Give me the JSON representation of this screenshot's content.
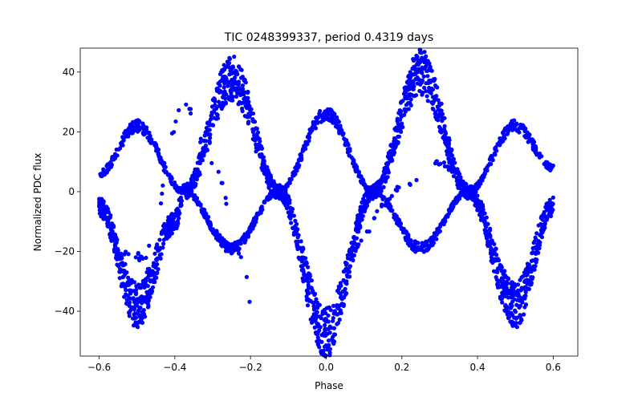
{
  "chart_data": {
    "type": "scatter",
    "title": "TIC 0248399337, period 0.4319 days",
    "xlabel": "Phase",
    "ylabel": "Normalized PDC flux",
    "xlim": [
      -0.65,
      0.665
    ],
    "ylim": [
      -55,
      48
    ],
    "x_ticks": [
      -0.6,
      -0.4,
      -0.2,
      0.0,
      0.2,
      0.4,
      0.6
    ],
    "x_tick_labels": [
      "−0.6",
      "−0.4",
      "−0.2",
      "0.0",
      "0.2",
      "0.4",
      "0.6"
    ],
    "y_ticks": [
      -40,
      -20,
      0,
      20,
      40
    ],
    "y_tick_labels": [
      "−40",
      "−20",
      "0",
      "20",
      "40"
    ],
    "grid": false,
    "marker_color": "#0000ff",
    "series": [
      {
        "description_components": [
          {
            "component": "primary",
            "x": [
              -0.6,
              -0.5,
              -0.4,
              -0.375,
              -0.25,
              -0.125,
              0.0,
              0.125,
              0.25,
              0.375,
              0.5,
              0.6
            ],
            "y": [
              -5,
              -38,
              -10,
              0,
              38,
              0,
              -47,
              0,
              40,
              0,
              -38,
              -5
            ]
          },
          {
            "component": "secondary",
            "x": [
              -0.6,
              -0.5,
              -0.375,
              -0.25,
              -0.125,
              0.0,
              0.125,
              0.25,
              0.375,
              0.5,
              0.6
            ],
            "y": [
              6,
              22,
              0,
              -19,
              0,
              26,
              0,
              -19,
              0,
              22,
              8
            ]
          },
          {
            "component": "outlier_arc",
            "x": [
              -0.54,
              -0.48,
              -0.44,
              -0.42,
              -0.38,
              -0.3,
              -0.22,
              -0.2
            ],
            "y": [
              -20,
              -22,
              -5,
              15,
              30,
              10,
              -22,
              -36
            ]
          },
          {
            "component": "outlier_arc",
            "x": [
              0.05,
              0.1,
              0.15,
              0.2,
              0.25,
              0.29,
              0.33,
              0.4,
              0.45
            ],
            "y": [
              -25,
              -15,
              -5,
              2,
              4,
              10,
              8,
              -3,
              -10
            ]
          }
        ]
      }
    ]
  }
}
